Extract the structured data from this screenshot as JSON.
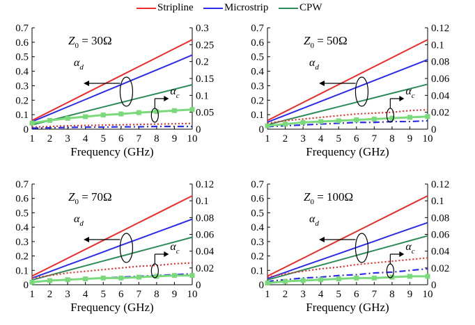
{
  "legend": {
    "items": [
      {
        "label": "Stripline",
        "color": "#ee2b2b"
      },
      {
        "label": "Microstrip",
        "color": "#2b2bee"
      },
      {
        "label": "CPW",
        "color": "#2e8b57"
      }
    ]
  },
  "chart_data": [
    {
      "type": "line",
      "title": "Z0 = 30Ω",
      "z0_label": "30Ω",
      "xlabel": "Frequency (GHz)",
      "xlim": [
        1,
        10
      ],
      "ylim_left": [
        0,
        0.7
      ],
      "ylim_right": [
        0,
        0.3
      ],
      "yticks_left": [
        "0",
        "0.1",
        "0.2",
        "0.3",
        "0.4",
        "0.5",
        "0.6",
        "0.7"
      ],
      "yticks_right": [
        "0",
        "0.05",
        "0.1",
        "0.15",
        "0.2",
        "0.25",
        "0.3"
      ],
      "xticks": [
        "1",
        "2",
        "3",
        "4",
        "5",
        "6",
        "7",
        "8",
        "9",
        "10"
      ],
      "alpha_d_label": "d",
      "alpha_c_label": "c",
      "x": [
        1,
        2,
        3,
        4,
        5,
        6,
        7,
        8,
        9,
        10
      ],
      "series": [
        {
          "group": "alpha_d",
          "line": "Stripline",
          "axis": "left",
          "style": "solid",
          "color": "#ee2b2b",
          "values": [
            0.06,
            0.122,
            0.184,
            0.246,
            0.308,
            0.37,
            0.432,
            0.494,
            0.556,
            0.618
          ]
        },
        {
          "group": "alpha_d",
          "line": "Microstrip",
          "axis": "left",
          "style": "solid",
          "color": "#2b2bee",
          "values": [
            0.052,
            0.103,
            0.154,
            0.205,
            0.256,
            0.307,
            0.358,
            0.409,
            0.46,
            0.512
          ]
        },
        {
          "group": "alpha_d",
          "line": "CPW",
          "axis": "left",
          "style": "solid",
          "color": "#2e8b57",
          "values": [
            0.03,
            0.06,
            0.091,
            0.122,
            0.153,
            0.184,
            0.215,
            0.245,
            0.276,
            0.307
          ]
        },
        {
          "group": "alpha_c",
          "line": "Stripline",
          "axis": "right",
          "style": "dotted",
          "color": "#ee2b2b",
          "values": [
            0.006,
            0.008,
            0.01,
            0.011,
            0.012,
            0.013,
            0.014,
            0.015,
            0.016,
            0.017
          ]
        },
        {
          "group": "alpha_c",
          "line": "Microstrip",
          "axis": "right",
          "style": "dashdot",
          "color": "#2b2bee",
          "values": [
            0.003,
            0.004,
            0.005,
            0.006,
            0.006,
            0.007,
            0.007,
            0.008,
            0.008,
            0.008
          ]
        },
        {
          "group": "alpha_c",
          "line": "CPW",
          "axis": "right",
          "style": "square-markers",
          "color": "#7ad97a",
          "values": [
            0.018,
            0.026,
            0.032,
            0.037,
            0.042,
            0.045,
            0.049,
            0.052,
            0.055,
            0.058
          ]
        }
      ]
    },
    {
      "type": "line",
      "title": "Z0 = 50Ω",
      "z0_label": "50Ω",
      "xlabel": "Frequency (GHz)",
      "xlim": [
        1,
        10
      ],
      "ylim_left": [
        0,
        0.7
      ],
      "ylim_right": [
        0,
        0.12
      ],
      "yticks_left": [
        "0",
        "0.1",
        "0.2",
        "0.3",
        "0.4",
        "0.5",
        "0.6",
        "0.7"
      ],
      "yticks_right": [
        "0",
        "0.02",
        "0.04",
        "0.06",
        "0.08",
        "0.1",
        "0.12"
      ],
      "xticks": [
        "1",
        "2",
        "3",
        "4",
        "5",
        "6",
        "7",
        "8",
        "9",
        "10"
      ],
      "alpha_d_label": "d",
      "alpha_c_label": "c",
      "x": [
        1,
        2,
        3,
        4,
        5,
        6,
        7,
        8,
        9,
        10
      ],
      "series": [
        {
          "group": "alpha_d",
          "line": "Stripline",
          "axis": "left",
          "style": "solid",
          "color": "#ee2b2b",
          "values": [
            0.06,
            0.122,
            0.184,
            0.246,
            0.308,
            0.37,
            0.432,
            0.494,
            0.556,
            0.618
          ]
        },
        {
          "group": "alpha_d",
          "line": "Microstrip",
          "axis": "left",
          "style": "solid",
          "color": "#2b2bee",
          "values": [
            0.048,
            0.096,
            0.144,
            0.192,
            0.24,
            0.288,
            0.336,
            0.384,
            0.432,
            0.48
          ]
        },
        {
          "group": "alpha_d",
          "line": "CPW",
          "axis": "left",
          "style": "solid",
          "color": "#2e8b57",
          "values": [
            0.03,
            0.062,
            0.093,
            0.124,
            0.155,
            0.186,
            0.217,
            0.248,
            0.279,
            0.31
          ]
        },
        {
          "group": "alpha_c",
          "line": "Stripline",
          "axis": "right",
          "style": "dotted",
          "color": "#ee2b2b",
          "values": [
            0.007,
            0.01,
            0.012,
            0.014,
            0.016,
            0.018,
            0.019,
            0.02,
            0.022,
            0.023
          ]
        },
        {
          "group": "alpha_c",
          "line": "Microstrip",
          "axis": "right",
          "style": "dashdot",
          "color": "#2b2bee",
          "values": [
            0.003,
            0.004,
            0.005,
            0.006,
            0.007,
            0.008,
            0.008,
            0.009,
            0.009,
            0.01
          ]
        },
        {
          "group": "alpha_c",
          "line": "CPW",
          "axis": "right",
          "style": "square-markers",
          "color": "#7ad97a",
          "values": [
            0.004,
            0.006,
            0.008,
            0.009,
            0.01,
            0.011,
            0.012,
            0.013,
            0.014,
            0.015
          ]
        }
      ]
    },
    {
      "type": "line",
      "title": "Z0 = 70Ω",
      "z0_label": "70Ω",
      "xlabel": "Frequency (GHz)",
      "xlim": [
        1,
        10
      ],
      "ylim_left": [
        0,
        0.7
      ],
      "ylim_right": [
        0,
        0.12
      ],
      "yticks_left": [
        "0",
        "0.1",
        "0.2",
        "0.3",
        "0.4",
        "0.5",
        "0.6",
        "0.7"
      ],
      "yticks_right": [
        "0",
        "0.02",
        "0.04",
        "0.06",
        "0.08",
        "0.1",
        "0.12"
      ],
      "xticks": [
        "1",
        "2",
        "3",
        "4",
        "5",
        "6",
        "7",
        "8",
        "9",
        "10"
      ],
      "alpha_d_label": "d",
      "alpha_c_label": "c",
      "x": [
        1,
        2,
        3,
        4,
        5,
        6,
        7,
        8,
        9,
        10
      ],
      "series": [
        {
          "group": "alpha_d",
          "line": "Stripline",
          "axis": "left",
          "style": "solid",
          "color": "#ee2b2b",
          "values": [
            0.06,
            0.122,
            0.184,
            0.246,
            0.308,
            0.37,
            0.432,
            0.494,
            0.556,
            0.618
          ]
        },
        {
          "group": "alpha_d",
          "line": "Microstrip",
          "axis": "left",
          "style": "solid",
          "color": "#2b2bee",
          "values": [
            0.046,
            0.091,
            0.137,
            0.182,
            0.228,
            0.274,
            0.319,
            0.365,
            0.41,
            0.456
          ]
        },
        {
          "group": "alpha_d",
          "line": "CPW",
          "axis": "left",
          "style": "solid",
          "color": "#2e8b57",
          "values": [
            0.033,
            0.066,
            0.099,
            0.132,
            0.165,
            0.198,
            0.231,
            0.264,
            0.297,
            0.33
          ]
        },
        {
          "group": "alpha_c",
          "line": "Stripline",
          "axis": "right",
          "style": "dotted",
          "color": "#ee2b2b",
          "values": [
            0.008,
            0.011,
            0.014,
            0.016,
            0.018,
            0.02,
            0.022,
            0.023,
            0.025,
            0.026
          ]
        },
        {
          "group": "alpha_c",
          "line": "Microstrip",
          "axis": "right",
          "style": "dashdot",
          "color": "#2b2bee",
          "values": [
            0.003,
            0.005,
            0.006,
            0.007,
            0.008,
            0.009,
            0.01,
            0.011,
            0.012,
            0.013
          ]
        },
        {
          "group": "alpha_c",
          "line": "CPW",
          "axis": "right",
          "style": "square-markers",
          "color": "#7ad97a",
          "values": [
            0.003,
            0.005,
            0.006,
            0.007,
            0.008,
            0.008,
            0.009,
            0.01,
            0.011,
            0.011
          ]
        }
      ]
    },
    {
      "type": "line",
      "title": "Z0 = 100Ω",
      "z0_label": "100Ω",
      "xlabel": "Frequency (GHz)",
      "xlim": [
        1,
        10
      ],
      "ylim_left": [
        0,
        0.7
      ],
      "ylim_right": [
        0,
        0.12
      ],
      "yticks_left": [
        "0",
        "0.1",
        "0.2",
        "0.3",
        "0.4",
        "0.5",
        "0.6",
        "0.7"
      ],
      "yticks_right": [
        "0",
        "0.02",
        "0.04",
        "0.06",
        "0.08",
        "0.1",
        "0.12"
      ],
      "xticks": [
        "1",
        "2",
        "3",
        "4",
        "5",
        "6",
        "7",
        "8",
        "9",
        "10"
      ],
      "alpha_d_label": "d",
      "alpha_c_label": "c",
      "x": [
        1,
        2,
        3,
        4,
        5,
        6,
        7,
        8,
        9,
        10
      ],
      "series": [
        {
          "group": "alpha_d",
          "line": "Stripline",
          "axis": "left",
          "style": "solid",
          "color": "#ee2b2b",
          "values": [
            0.06,
            0.122,
            0.184,
            0.246,
            0.308,
            0.37,
            0.432,
            0.494,
            0.556,
            0.618
          ]
        },
        {
          "group": "alpha_d",
          "line": "Microstrip",
          "axis": "left",
          "style": "solid",
          "color": "#2b2bee",
          "values": [
            0.043,
            0.086,
            0.13,
            0.173,
            0.216,
            0.259,
            0.302,
            0.346,
            0.389,
            0.432
          ]
        },
        {
          "group": "alpha_d",
          "line": "CPW",
          "axis": "left",
          "style": "solid",
          "color": "#2e8b57",
          "values": [
            0.034,
            0.068,
            0.102,
            0.136,
            0.17,
            0.204,
            0.238,
            0.272,
            0.306,
            0.34
          ]
        },
        {
          "group": "alpha_c",
          "line": "Stripline",
          "axis": "right",
          "style": "dotted",
          "color": "#ee2b2b",
          "values": [
            0.009,
            0.013,
            0.016,
            0.019,
            0.021,
            0.024,
            0.026,
            0.028,
            0.03,
            0.032
          ]
        },
        {
          "group": "alpha_c",
          "line": "Microstrip",
          "axis": "right",
          "style": "dashdot",
          "color": "#2b2bee",
          "values": [
            0.004,
            0.006,
            0.008,
            0.009,
            0.011,
            0.012,
            0.014,
            0.015,
            0.017,
            0.019
          ]
        },
        {
          "group": "alpha_c",
          "line": "CPW",
          "axis": "right",
          "style": "square-markers",
          "color": "#7ad97a",
          "values": [
            0.002,
            0.004,
            0.005,
            0.006,
            0.007,
            0.008,
            0.008,
            0.009,
            0.01,
            0.01
          ]
        }
      ]
    }
  ]
}
